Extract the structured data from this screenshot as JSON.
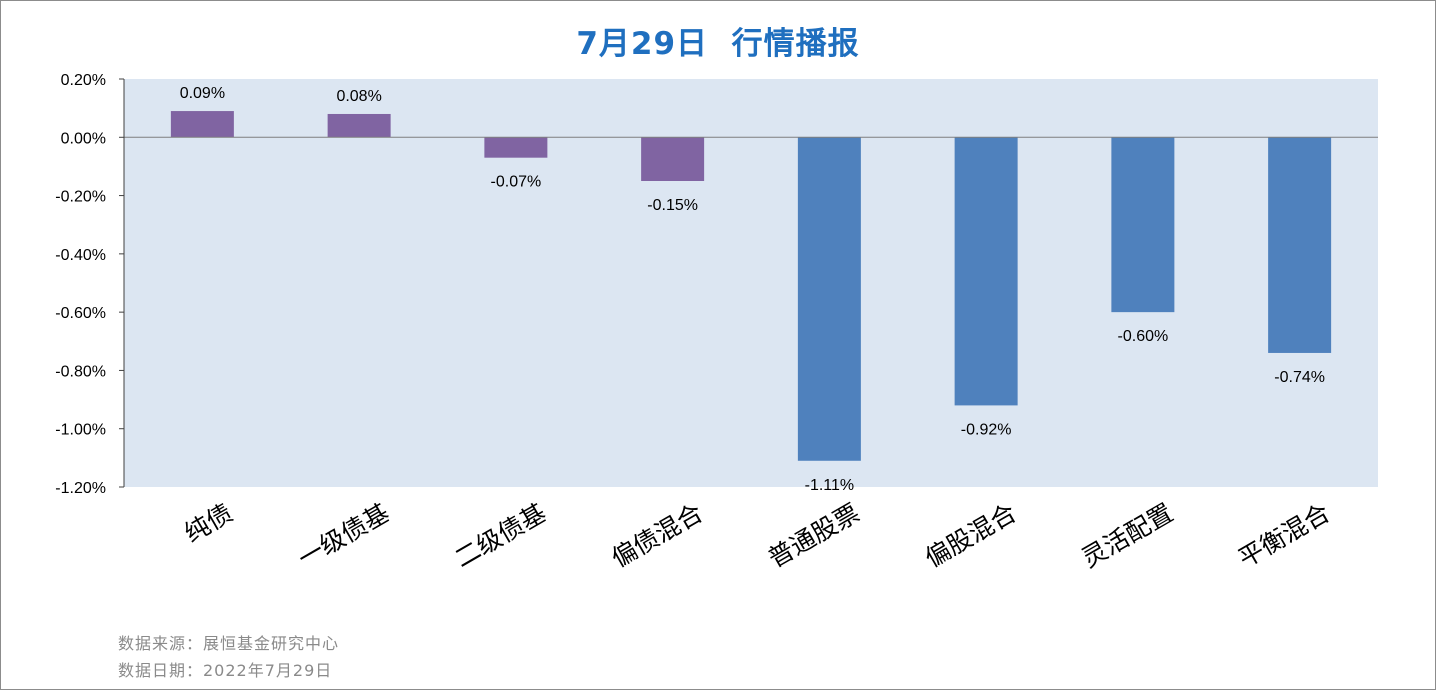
{
  "chart_data": {
    "type": "bar",
    "title": "7月29日  行情播报",
    "categories": [
      "纯债",
      "一级债基",
      "二级债基",
      "偏债混合",
      "普通股票",
      "偏股混合",
      "灵活配置",
      "平衡混合"
    ],
    "values": [
      0.09,
      0.08,
      -0.07,
      -0.15,
      -1.11,
      -0.92,
      -0.6,
      -0.74
    ],
    "data_labels": [
      "0.09%",
      "0.08%",
      "-0.07%",
      "-0.15%",
      "-1.11%",
      "-0.92%",
      "-0.60%",
      "-0.74%"
    ],
    "ylim": [
      -1.2,
      0.2
    ],
    "y_ticks": [
      0.2,
      0.0,
      -0.2,
      -0.4,
      -0.6,
      -0.8,
      -1.0,
      -1.2
    ],
    "y_tick_labels": [
      "0.20%",
      "0.00%",
      "-0.20%",
      "-0.40%",
      "-0.60%",
      "-0.80%",
      "-1.00%",
      "-1.20%"
    ],
    "xlabel": "",
    "ylabel": "",
    "grid": false,
    "legend": "none",
    "plot_background": "#dce6f2",
    "bar_colors": [
      "#8064a2",
      "#8064a2",
      "#8064a2",
      "#8064a2",
      "#4f81bd",
      "#4f81bd",
      "#4f81bd",
      "#4f81bd"
    ]
  },
  "footer": {
    "source": "数据来源：展恒基金研究中心",
    "date": "数据日期：2022年7月29日"
  }
}
